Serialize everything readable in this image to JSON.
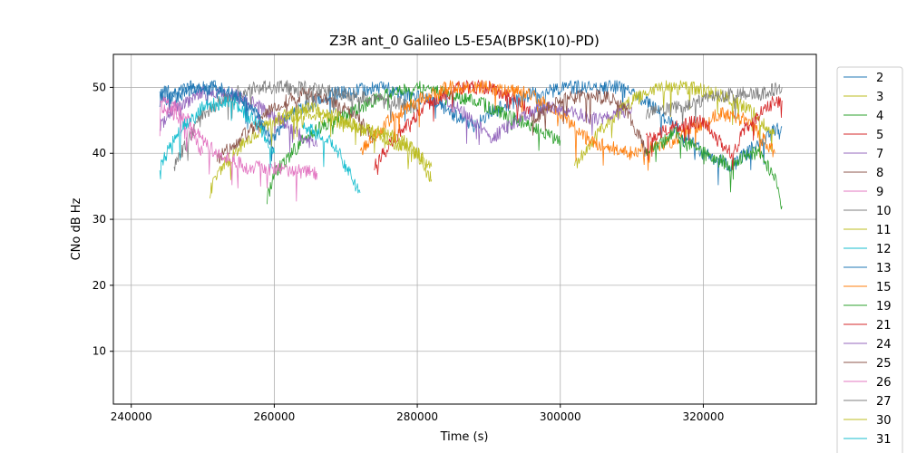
{
  "chart_data": {
    "type": "line",
    "title": "Z3R ant_0 Galileo L5-E5A(BPSK(10)-PD)",
    "xlabel": "Time (s)",
    "ylabel": "CNo dB Hz",
    "xlim": [
      237500,
      335800
    ],
    "ylim": [
      2,
      55
    ],
    "x_ticks": [
      240000,
      260000,
      280000,
      300000,
      320000
    ],
    "y_ticks": [
      10,
      20,
      30,
      40,
      50
    ],
    "grid": true,
    "legend_position": "right-outside",
    "series": [
      {
        "name": "2",
        "color": "#1f77b4",
        "points": [
          [
            244000,
            48
          ],
          [
            250000,
            50
          ],
          [
            256000,
            48
          ],
          [
            260000,
            42
          ],
          [
            262000,
            46
          ],
          [
            268000,
            49
          ],
          [
            275000,
            50
          ],
          [
            282000,
            48
          ],
          [
            288000,
            44
          ],
          [
            290000,
            46
          ],
          [
            296000,
            49
          ],
          [
            302000,
            50
          ],
          [
            308000,
            50
          ],
          [
            312000,
            48
          ],
          [
            316000,
            44
          ],
          [
            320000,
            40
          ],
          [
            324000,
            38
          ],
          [
            328000,
            42
          ],
          [
            331000,
            44
          ]
        ]
      },
      {
        "name": "3",
        "color": "#bcbd22",
        "points": [
          [
            251000,
            34
          ],
          [
            252000,
            37
          ],
          [
            256000,
            42
          ],
          [
            260000,
            45
          ],
          [
            264000,
            46
          ],
          [
            268000,
            45
          ],
          [
            272000,
            44
          ],
          [
            278000,
            42
          ],
          [
            282000,
            38
          ]
        ]
      },
      {
        "name": "4",
        "color": "#2ca02c",
        "points": [
          [
            259000,
            33
          ],
          [
            260000,
            37
          ],
          [
            264000,
            42
          ],
          [
            268000,
            45
          ],
          [
            272000,
            47
          ],
          [
            276000,
            49
          ],
          [
            280000,
            50
          ],
          [
            284000,
            49
          ],
          [
            288000,
            48
          ],
          [
            292000,
            46
          ],
          [
            296000,
            44
          ],
          [
            300000,
            42
          ]
        ]
      },
      {
        "name": "5",
        "color": "#d62728",
        "points": [
          [
            274000,
            38
          ],
          [
            278000,
            44
          ],
          [
            282000,
            48
          ],
          [
            286000,
            50
          ],
          [
            290000,
            50
          ],
          [
            294000,
            48
          ],
          [
            296000,
            46
          ]
        ]
      },
      {
        "name": "7",
        "color": "#9467bd",
        "points": [
          [
            244000,
            44
          ],
          [
            246000,
            47
          ],
          [
            250000,
            49
          ],
          [
            254000,
            49
          ],
          [
            258000,
            47
          ],
          [
            262000,
            44
          ],
          [
            266000,
            41
          ]
        ]
      },
      {
        "name": "8",
        "color": "#8c564b",
        "points": [
          [
            252000,
            39
          ],
          [
            256000,
            43
          ],
          [
            260000,
            47
          ],
          [
            264000,
            49
          ],
          [
            268000,
            48
          ],
          [
            272000,
            45
          ],
          [
            274000,
            42
          ]
        ]
      },
      {
        "name": "9",
        "color": "#e377c2",
        "points": [
          [
            244000,
            48
          ],
          [
            246000,
            47
          ],
          [
            248000,
            45
          ],
          [
            250000,
            42
          ],
          [
            252000,
            40
          ],
          [
            256000,
            38
          ],
          [
            266000,
            37
          ]
        ]
      },
      {
        "name": "10",
        "color": "#7f7f7f",
        "points": [
          [
            246000,
            38
          ],
          [
            248000,
            42
          ],
          [
            250000,
            46
          ],
          [
            254000,
            49
          ],
          [
            258000,
            50
          ],
          [
            264000,
            50
          ],
          [
            270000,
            49
          ],
          [
            276000,
            48
          ],
          [
            280000,
            47
          ]
        ]
      },
      {
        "name": "11",
        "color": "#bcbd22",
        "points": [
          [
            302000,
            38
          ],
          [
            306000,
            44
          ],
          [
            310000,
            48
          ],
          [
            314000,
            50
          ],
          [
            318000,
            50
          ],
          [
            322000,
            49
          ],
          [
            326000,
            47
          ],
          [
            330000,
            43
          ]
        ]
      },
      {
        "name": "12",
        "color": "#17becf",
        "points": [
          [
            264000,
            44
          ],
          [
            268000,
            42
          ],
          [
            270000,
            38
          ],
          [
            272000,
            34
          ]
        ]
      },
      {
        "name": "13",
        "color": "#1f77b4",
        "points": [
          [
            244000,
            49
          ],
          [
            248000,
            50
          ],
          [
            252000,
            50
          ],
          [
            256000,
            48
          ],
          [
            258000,
            45
          ],
          [
            260000,
            40
          ]
        ]
      },
      {
        "name": "15",
        "color": "#ff7f0e",
        "points": [
          [
            272000,
            40
          ],
          [
            276000,
            45
          ],
          [
            280000,
            48
          ],
          [
            284000,
            50
          ],
          [
            290000,
            50
          ],
          [
            296000,
            49
          ],
          [
            300000,
            46
          ],
          [
            304000,
            42
          ],
          [
            310000,
            40
          ],
          [
            316000,
            42
          ],
          [
            322000,
            46
          ],
          [
            326000,
            45
          ],
          [
            330000,
            40
          ]
        ]
      },
      {
        "name": "19",
        "color": "#2ca02c",
        "points": [
          [
            312000,
            40
          ],
          [
            316000,
            43
          ],
          [
            320000,
            40
          ],
          [
            324000,
            38
          ],
          [
            326000,
            40
          ],
          [
            328000,
            40
          ],
          [
            330000,
            36
          ],
          [
            331000,
            32
          ]
        ]
      },
      {
        "name": "21",
        "color": "#d62728",
        "points": [
          [
            312000,
            42
          ],
          [
            316000,
            44
          ],
          [
            320000,
            45
          ],
          [
            322000,
            42
          ],
          [
            324000,
            40
          ],
          [
            326000,
            44
          ],
          [
            330000,
            48
          ],
          [
            331000,
            48
          ]
        ]
      },
      {
        "name": "24",
        "color": "#9467bd",
        "points": [
          [
            284000,
            48
          ],
          [
            288000,
            45
          ],
          [
            290000,
            42
          ],
          [
            294000,
            45
          ],
          [
            298000,
            47
          ],
          [
            302000,
            46
          ],
          [
            306000,
            45
          ],
          [
            310000,
            47
          ]
        ]
      },
      {
        "name": "25",
        "color": "#8c564b",
        "points": [
          [
            296000,
            45
          ],
          [
            300000,
            48
          ],
          [
            304000,
            49
          ],
          [
            308000,
            48
          ],
          [
            310000,
            45
          ],
          [
            312000,
            40
          ]
        ]
      },
      {
        "name": "26",
        "color": "#e377c2",
        "points": [
          [
            244000,
            47
          ],
          [
            246000,
            46
          ],
          [
            248000,
            44
          ],
          [
            250000,
            40
          ]
        ]
      },
      {
        "name": "27",
        "color": "#7f7f7f",
        "points": [
          [
            312000,
            46
          ],
          [
            316000,
            47
          ],
          [
            320000,
            48
          ],
          [
            324000,
            49
          ],
          [
            328000,
            49
          ],
          [
            331000,
            50
          ]
        ]
      },
      {
        "name": "30",
        "color": "#bcbd22",
        "points": [
          [
            260000,
            45
          ],
          [
            264000,
            47
          ],
          [
            268000,
            46
          ],
          [
            272000,
            44
          ],
          [
            276000,
            42
          ],
          [
            280000,
            40
          ],
          [
            282000,
            36
          ]
        ]
      },
      {
        "name": "31",
        "color": "#17becf",
        "points": [
          [
            244000,
            38
          ],
          [
            246000,
            42
          ],
          [
            248000,
            45
          ],
          [
            250000,
            47
          ],
          [
            254000,
            48
          ],
          [
            256000,
            46
          ],
          [
            258000,
            44
          ],
          [
            260000,
            40
          ]
        ]
      }
    ]
  }
}
